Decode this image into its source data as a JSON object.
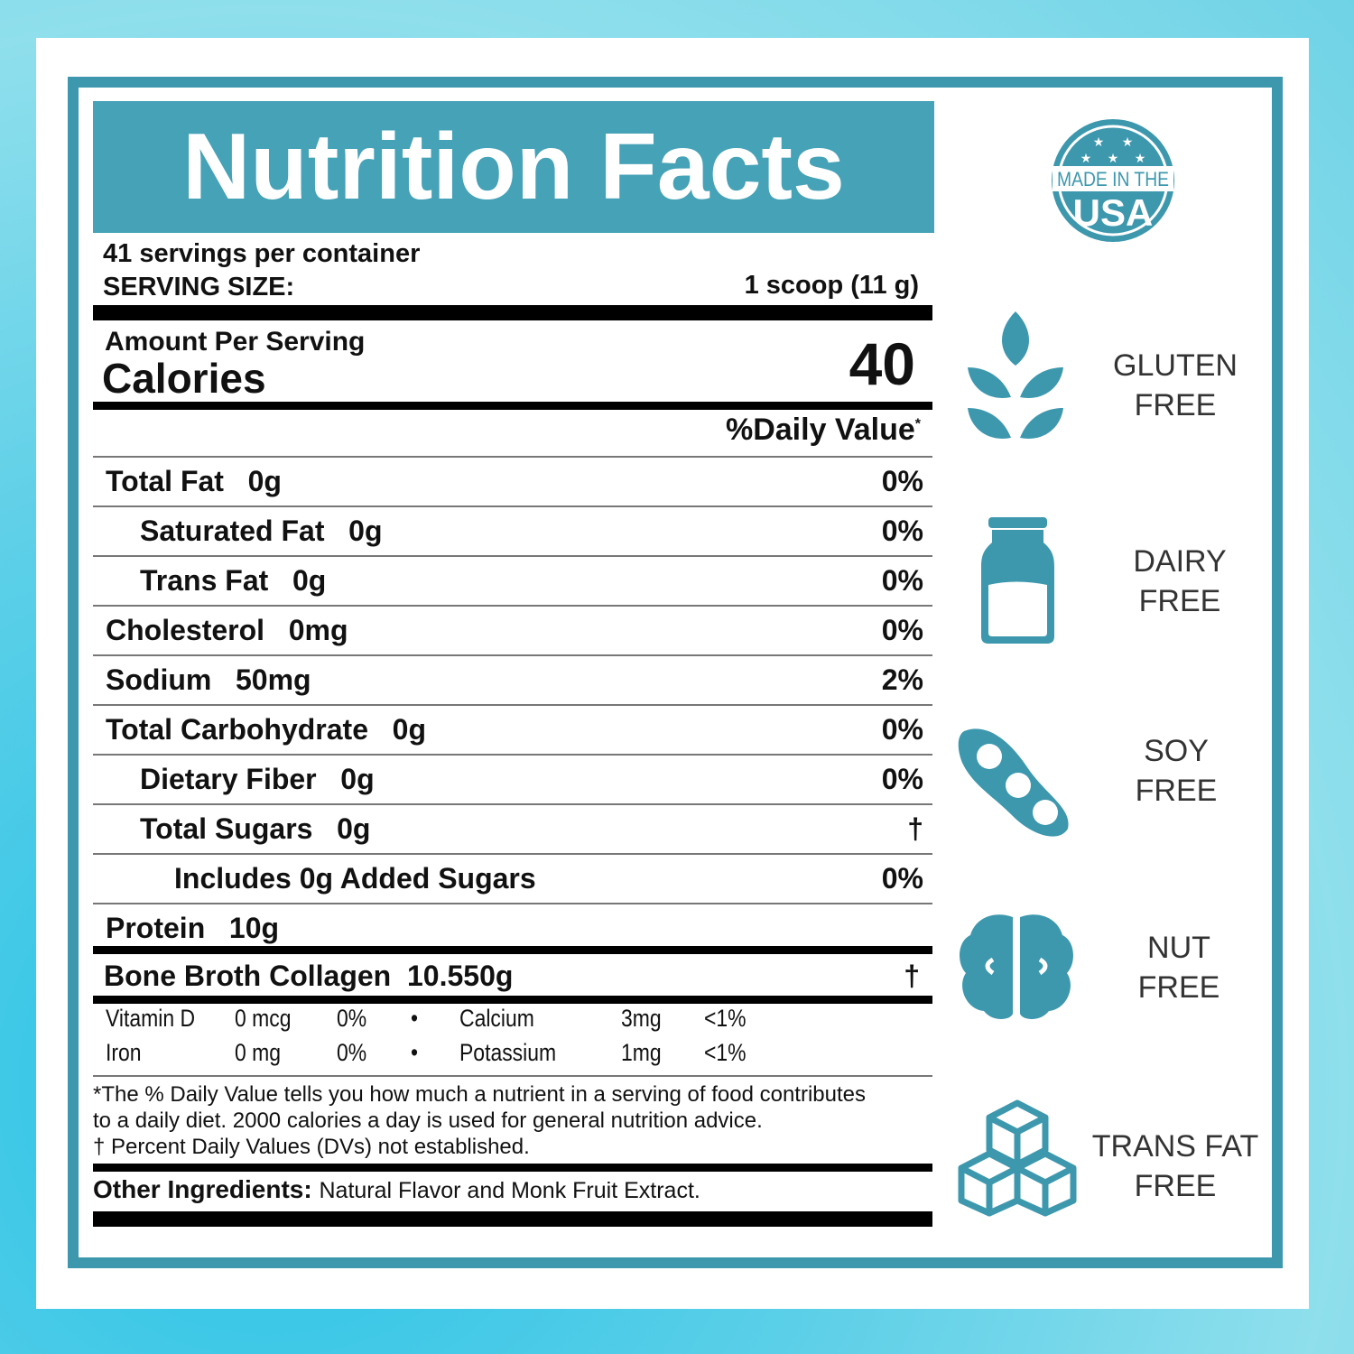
{
  "title": "Nutrition Facts",
  "servings": "41 servings per container",
  "serving_size_label": "SERVING SIZE:",
  "serving_size_value": "1 scoop (11 g)",
  "amount_per_serving": "Amount Per Serving",
  "calories_label": "Calories",
  "calories_value": "40",
  "daily_value_header": "%Daily Value",
  "daily_value_mark": "*",
  "nutrients": [
    {
      "name": "Total Fat",
      "amount": "0g",
      "dv": "0%",
      "indent": 0
    },
    {
      "name": "Saturated Fat",
      "amount": "0g",
      "dv": "0%",
      "indent": 1
    },
    {
      "name": "Trans Fat",
      "amount": "0g",
      "dv": "0%",
      "indent": 1
    },
    {
      "name": "Cholesterol",
      "amount": "0mg",
      "dv": "0%",
      "indent": 0
    },
    {
      "name": "Sodium",
      "amount": "50mg",
      "dv": "2%",
      "indent": 0
    },
    {
      "name": "Total Carbohydrate",
      "amount": "0g",
      "dv": "0%",
      "indent": 0
    },
    {
      "name": "Dietary Fiber",
      "amount": "0g",
      "dv": "0%",
      "indent": 1
    },
    {
      "name": "Total Sugars",
      "amount": "0g",
      "dv": "†",
      "indent": 1
    },
    {
      "name": "Includes 0g Added Sugars",
      "amount": "",
      "dv": "0%",
      "indent": 2
    },
    {
      "name": "Protein",
      "amount": "10g",
      "dv": "",
      "indent": 0
    }
  ],
  "collagen": {
    "name": "Bone Broth Collagen",
    "amount": "10.550g",
    "dv": "†"
  },
  "vitamins": [
    [
      "Vitamin D",
      "0 mcg",
      "0%",
      "•",
      "Calcium",
      "3mg",
      "<1%"
    ],
    [
      "Iron",
      "0 mg",
      "0%",
      "•",
      "Potassium",
      "1mg",
      "<1%"
    ]
  ],
  "footnote": [
    "*The % Daily Value tells you how much a nutrient in a serving of food contributes",
    "to a daily diet. 2000 calories a day is used for general nutrition advice.",
    "† Percent Daily Values (DVs) not established."
  ],
  "ingredients_label": "Other Ingredients:",
  "ingredients": "Natural Flavor and Monk Fruit Extract.",
  "badge": {
    "line1": "MADE IN THE",
    "line2": "USA"
  },
  "claims": [
    {
      "icon": "wheat-icon",
      "line1": "GLUTEN",
      "line2": "FREE"
    },
    {
      "icon": "milk-bottle-icon",
      "line1": "DAIRY",
      "line2": "FREE"
    },
    {
      "icon": "soybean-icon",
      "line1": "SOY",
      "line2": "FREE"
    },
    {
      "icon": "walnut-icon",
      "line1": "NUT",
      "line2": "FREE"
    },
    {
      "icon": "cubes-icon",
      "line1": "TRANS FAT",
      "line2": "FREE"
    }
  ],
  "colors": {
    "teal": "#3d98ae",
    "title_bg": "#45a2b7"
  }
}
